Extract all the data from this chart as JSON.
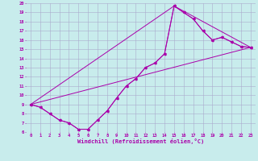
{
  "xlabel": "Windchill (Refroidissement éolien,°C)",
  "background_color": "#c8ecec",
  "grid_color": "#aaaacc",
  "line_color": "#aa00aa",
  "xlim": [
    -0.5,
    23.5
  ],
  "ylim": [
    6,
    20
  ],
  "xticks": [
    0,
    1,
    2,
    3,
    4,
    5,
    6,
    7,
    8,
    9,
    10,
    11,
    12,
    13,
    14,
    15,
    16,
    17,
    18,
    19,
    20,
    21,
    22,
    23
  ],
  "yticks": [
    6,
    7,
    8,
    9,
    10,
    11,
    12,
    13,
    14,
    15,
    16,
    17,
    18,
    19,
    20
  ],
  "line1_x": [
    0,
    1,
    2,
    3,
    4,
    5,
    6,
    7,
    8,
    9,
    10,
    11,
    12,
    13,
    14,
    15,
    16,
    17,
    18,
    19,
    20,
    21,
    22,
    23
  ],
  "line1_y": [
    9,
    8.7,
    8,
    7.3,
    7,
    6.3,
    6.3,
    7.3,
    8.3,
    9.7,
    11,
    11.8,
    13,
    13.5,
    14.5,
    19.7,
    19,
    18.3,
    17,
    16,
    16.3,
    15.8,
    15.3,
    15.2
  ],
  "line2_x": [
    0,
    15,
    16,
    17,
    18,
    19,
    20,
    21,
    22,
    23
  ],
  "line2_y": [
    9,
    19.7,
    19,
    18.3,
    17,
    16,
    16.3,
    15.8,
    15.3,
    15.2
  ],
  "line3_x": [
    0,
    1,
    2,
    3,
    4,
    5,
    6,
    7,
    8,
    9,
    10,
    11,
    12,
    13,
    14,
    15,
    23
  ],
  "line3_y": [
    9,
    8.7,
    8,
    7.3,
    7,
    6.3,
    6.3,
    7.3,
    8.3,
    9.7,
    11,
    11.8,
    13,
    13.5,
    14.5,
    19.7,
    15.2
  ],
  "line4_x": [
    0,
    23
  ],
  "line4_y": [
    9,
    15.2
  ]
}
